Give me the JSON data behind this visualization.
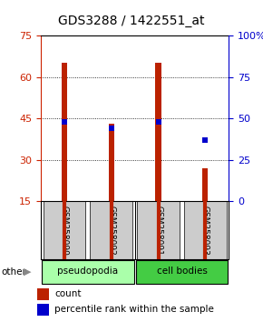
{
  "title": "GDS3288 / 1422551_at",
  "samples": [
    "GSM258090",
    "GSM258092",
    "GSM258091",
    "GSM258093"
  ],
  "groups": [
    "pseudopodia",
    "pseudopodia",
    "cell bodies",
    "cell bodies"
  ],
  "counts": [
    65,
    43,
    65,
    27
  ],
  "percentiles": [
    48,
    44,
    48,
    37
  ],
  "ylim_left": [
    15,
    75
  ],
  "ylim_right": [
    0,
    100
  ],
  "yticks_left": [
    15,
    30,
    45,
    60,
    75
  ],
  "yticks_right": [
    0,
    25,
    50,
    75,
    100
  ],
  "bar_color": "#bb2200",
  "dot_color": "#0000cc",
  "pseudopodia_color": "#aaffaa",
  "cell_bodies_color": "#44cc44",
  "label_bg_color": "#cccccc",
  "left_tick_color": "#cc2200",
  "right_tick_color": "#0000cc",
  "title_fontsize": 10,
  "legend_fontsize": 7.5,
  "other_label": "other",
  "bar_width": 0.12
}
